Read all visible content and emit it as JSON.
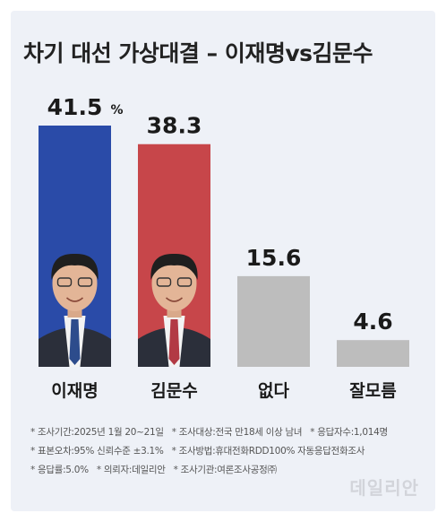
{
  "title": "차기 대선 가상대결 – 이재명vs김문수",
  "brand": "데일리안",
  "colors": {
    "background": "#eef1f7",
    "lee": "#2a4ba8",
    "kim": "#c7464a",
    "neutral": "#bdbdbd"
  },
  "chart_data": {
    "type": "bar",
    "title": "차기 대선 가상대결 – 이재명vs김문수",
    "categories": [
      "이재명",
      "김문수",
      "없다",
      "잘모름"
    ],
    "values": [
      41.5,
      38.3,
      15.6,
      4.6
    ],
    "value_labels": [
      "41.5",
      "38.3",
      "15.6",
      "4.6"
    ],
    "unit_label": "%",
    "bar_colors": [
      "#2a4ba8",
      "#c7464a",
      "#bdbdbd",
      "#bdbdbd"
    ],
    "ylim": [
      0,
      41.5
    ],
    "grid": false,
    "legend": "none"
  },
  "footnotes": [
    [
      "* 조사기간:2025년 1월 20~21일",
      "* 조사대상:전국 만18세 이상 남녀",
      "* 응답자수:1,014명"
    ],
    [
      "* 표본오차:95% 신뢰수준 ±3.1%",
      "* 조사방법:휴대전화RDD100% 자동응답전화조사"
    ],
    [
      "* 응답률:5.0%",
      "* 의뢰자:데일리안",
      "* 조사기관:여론조사공정㈜"
    ]
  ]
}
